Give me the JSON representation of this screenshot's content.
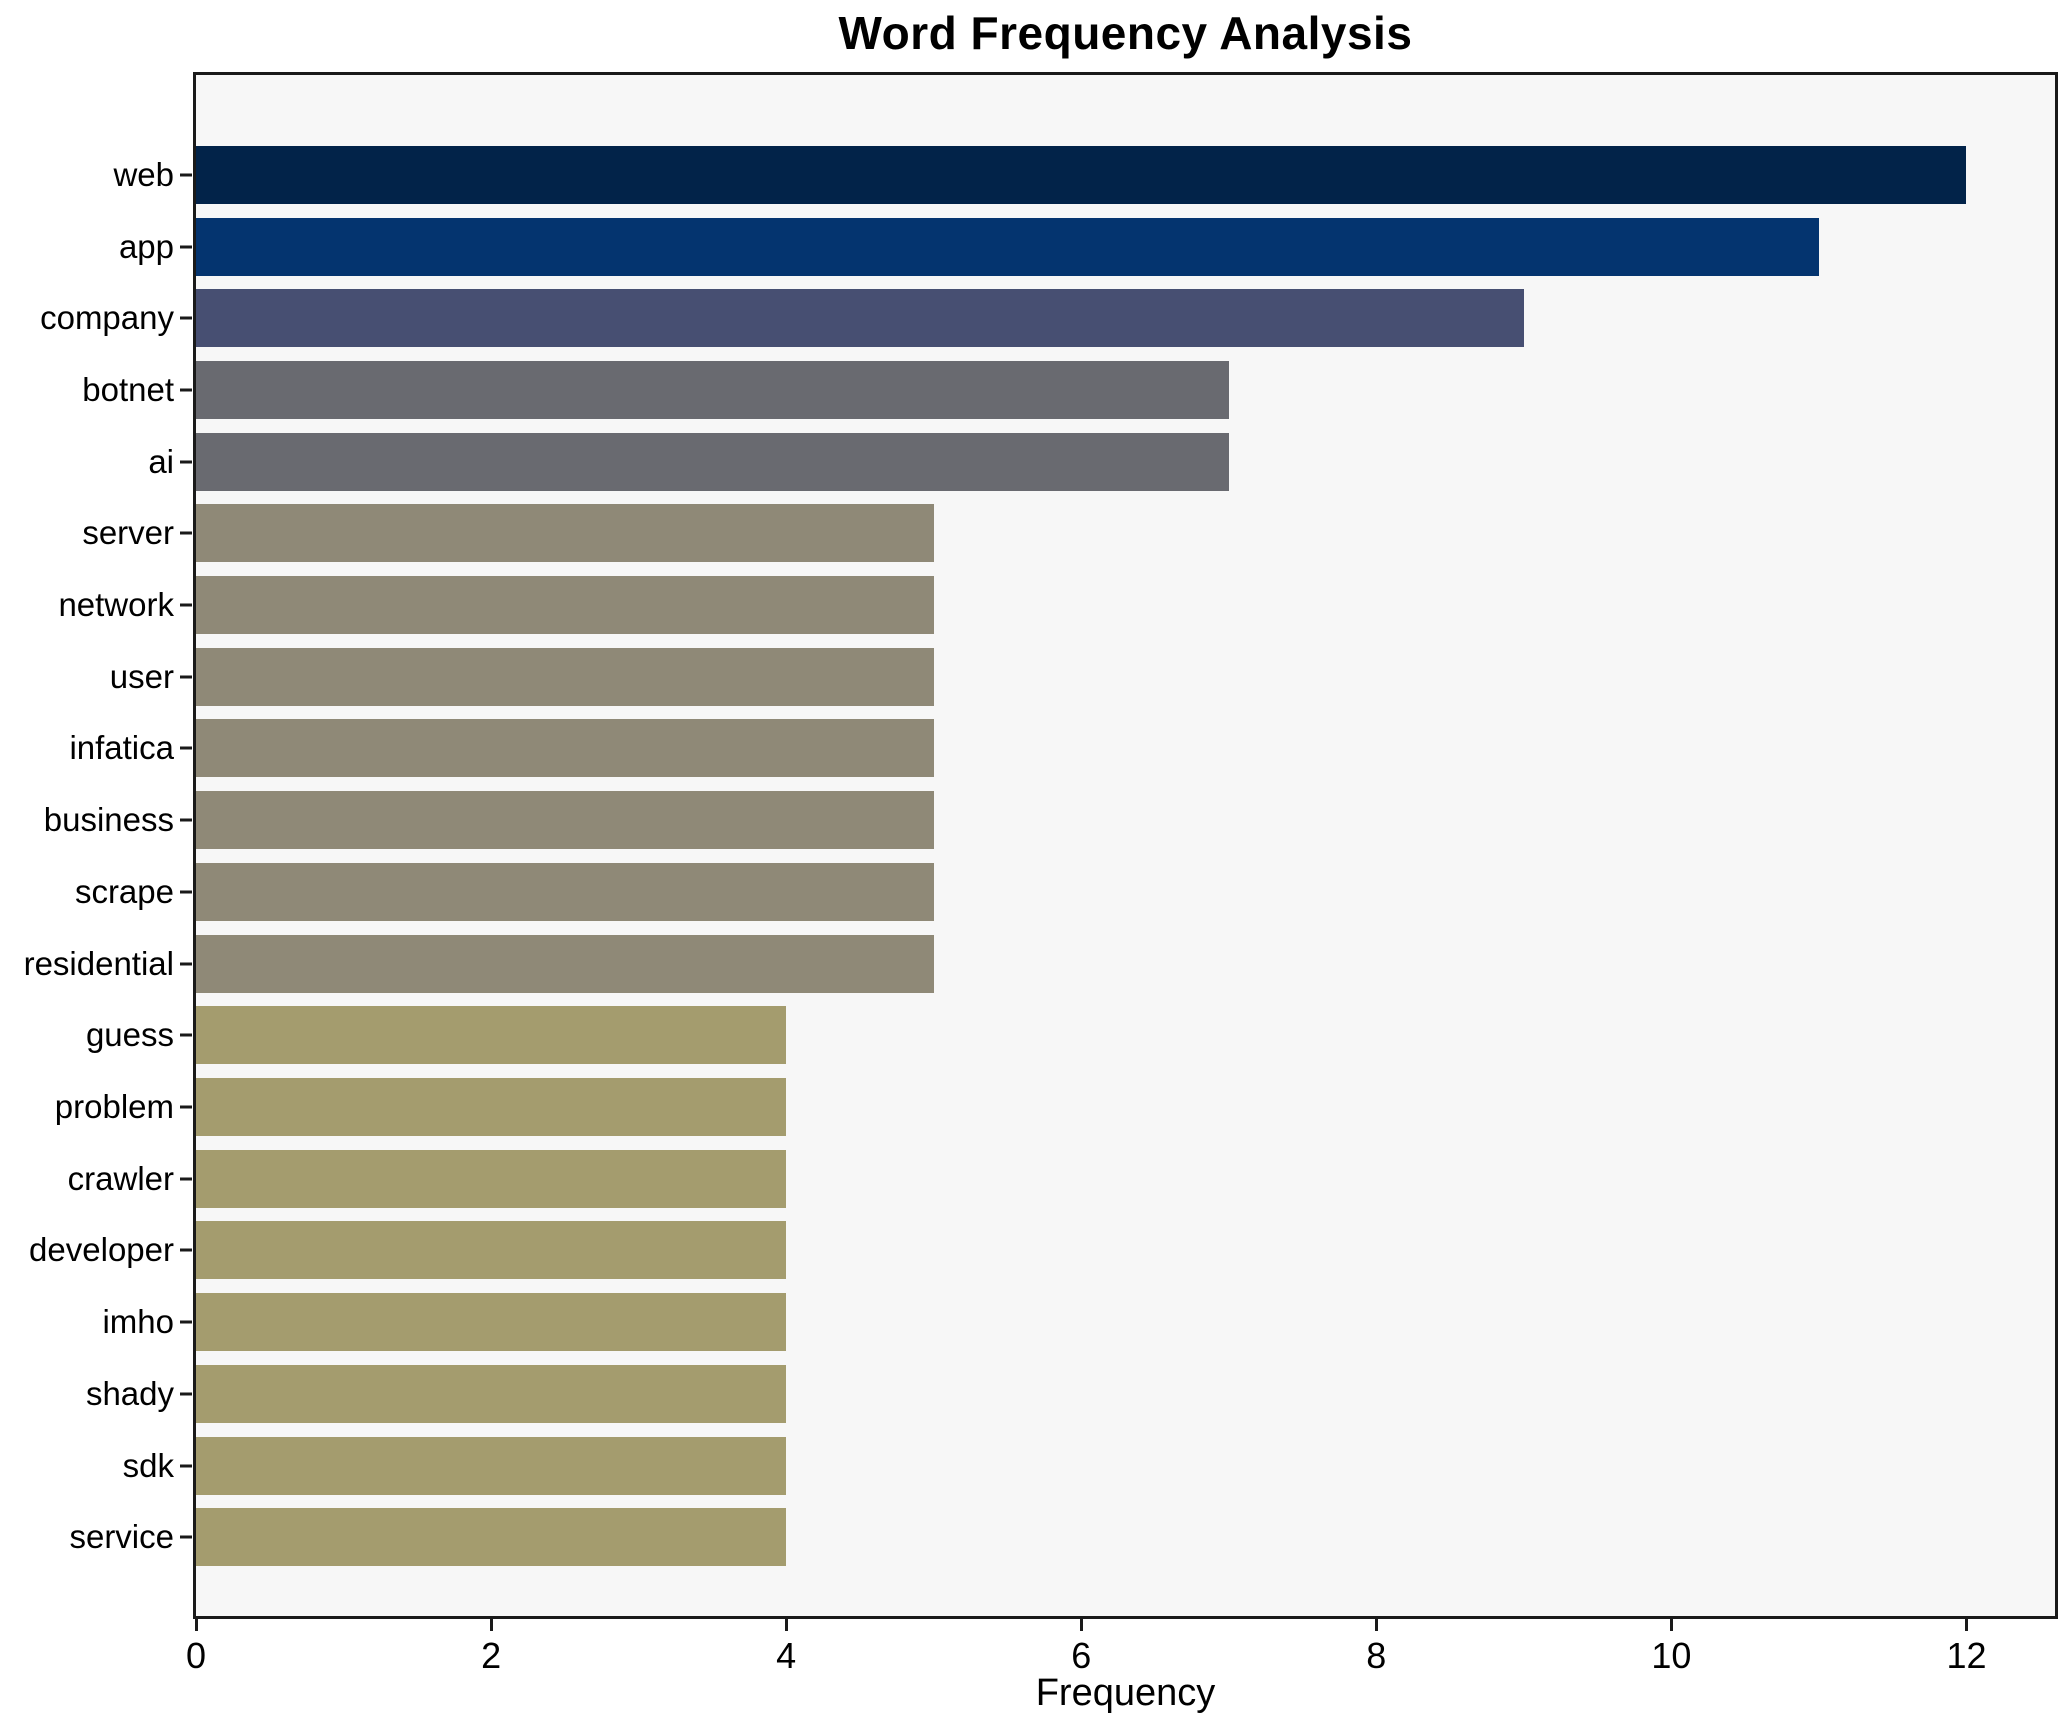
{
  "title": "Word Frequency Analysis",
  "chart_data": {
    "type": "bar",
    "orientation": "horizontal",
    "title": "Word Frequency Analysis",
    "xlabel": "Frequency",
    "ylabel": "",
    "xlim": [
      0,
      12.6
    ],
    "xticks": [
      0,
      2,
      4,
      6,
      8,
      10,
      12
    ],
    "grid": false,
    "legend": "none",
    "categories": [
      "web",
      "app",
      "company",
      "botnet",
      "ai",
      "server",
      "network",
      "user",
      "infatica",
      "business",
      "scrape",
      "residential",
      "guess",
      "problem",
      "crawler",
      "developer",
      "imho",
      "shady",
      "sdk",
      "service"
    ],
    "values": [
      12,
      11,
      9,
      7,
      7,
      5,
      5,
      5,
      5,
      5,
      5,
      5,
      4,
      4,
      4,
      4,
      4,
      4,
      4,
      4
    ],
    "bar_colors": [
      "#022349",
      "#04346f",
      "#474f72",
      "#696a70",
      "#696a70",
      "#8f8977",
      "#8f8977",
      "#8f8977",
      "#8f8977",
      "#8f8977",
      "#8f8977",
      "#8f8977",
      "#a49c6e",
      "#a49c6e",
      "#a49c6e",
      "#a49c6e",
      "#a49c6e",
      "#a49c6e",
      "#a49c6e",
      "#a49c6e"
    ]
  },
  "colors": {
    "figure_bg": "#ffffff",
    "plot_bg": "#f7f7f7",
    "spine": "#1a1a1a",
    "text": "#000000"
  }
}
